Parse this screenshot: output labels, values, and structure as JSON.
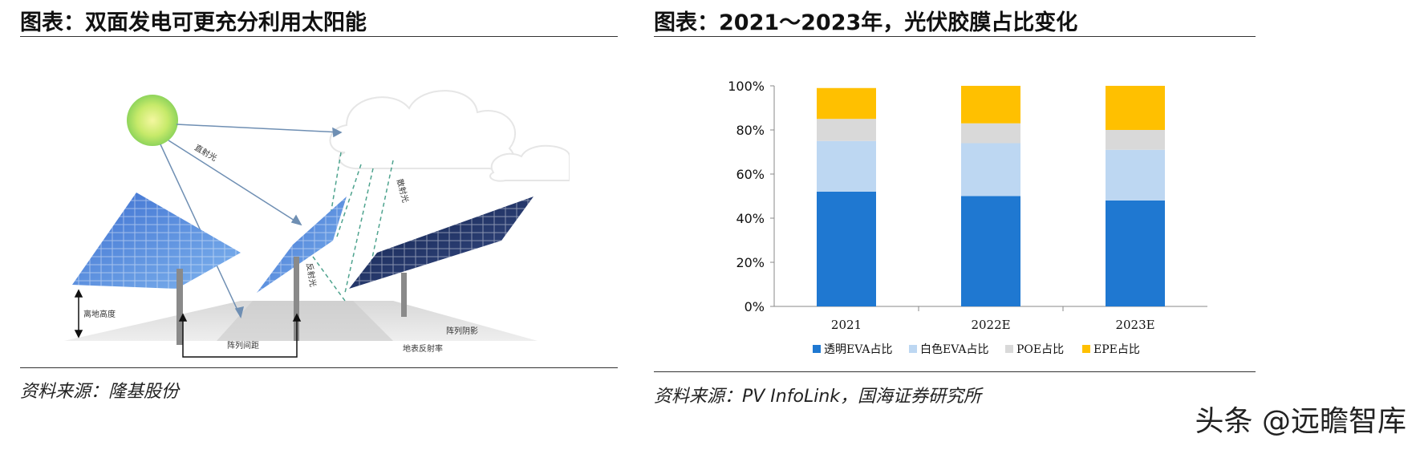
{
  "left_panel": {
    "title": "图表：双面发电可更充分利用太阳能",
    "source": "资料来源：隆基股份",
    "labels": {
      "direct_light": "直射光",
      "scattered_light": "散射光",
      "reflected_light": "反射光",
      "ground_height": "离地高度",
      "row_spacing": "阵列间距",
      "ground_reflectance": "地表反射率",
      "array_shadow": "阵列阴影"
    }
  },
  "right_panel": {
    "title": "图表：2021～2023年，光伏胶膜占比变化",
    "source": "资料来源：PV InfoLink，国海证券研究所"
  },
  "watermark": "头条 @远瞻智库",
  "colors": {
    "transparent_eva": "#1F78D1",
    "white_eva": "#BDD7F2",
    "poe": "#D9D9D9",
    "epe": "#FFC000"
  },
  "chart_data": {
    "type": "bar",
    "stacked": true,
    "categories": [
      "2021",
      "2022E",
      "2023E"
    ],
    "series": [
      {
        "name": "透明EVA占比",
        "values": [
          52,
          50,
          48
        ],
        "color": "#1F78D1"
      },
      {
        "name": "白色EVA占比",
        "values": [
          23,
          24,
          23
        ],
        "color": "#BDD7F2"
      },
      {
        "name": "POE占比",
        "values": [
          10,
          9,
          9
        ],
        "color": "#D9D9D9"
      },
      {
        "name": "EPE占比",
        "values": [
          14,
          17,
          20
        ],
        "color": "#FFC000"
      }
    ],
    "ylim": [
      0,
      100
    ],
    "yticks": [
      "0%",
      "20%",
      "40%",
      "60%",
      "80%",
      "100%"
    ],
    "legend_position": "bottom",
    "title": "",
    "xlabel": "",
    "ylabel": ""
  }
}
